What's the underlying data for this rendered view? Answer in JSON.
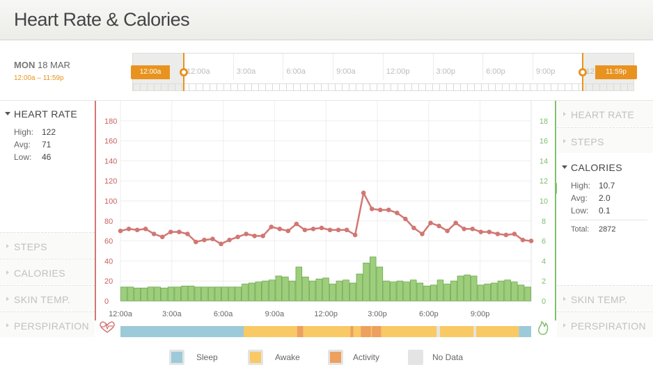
{
  "header": {
    "title": "Heart Rate & Calories"
  },
  "date": {
    "weekday": "MON",
    "day": "18 MAR",
    "range": "12:00a – 11:59p"
  },
  "timeline": {
    "labels": [
      "12:00a",
      "3:00a",
      "6:00a",
      "9:00a",
      "12:00p",
      "3:00p",
      "6:00p",
      "9:00p",
      "12"
    ],
    "start_tag": "12:00a",
    "end_tag": "11:59p",
    "accent": "#e8931f"
  },
  "left_panel": {
    "active": {
      "title": "HEART RATE",
      "stats": [
        {
          "key": "High:",
          "value": "122"
        },
        {
          "key": "Avg:",
          "value": "71"
        },
        {
          "key": "Low:",
          "value": "46"
        }
      ]
    },
    "collapsed": [
      "STEPS",
      "CALORIES",
      "SKIN TEMP.",
      "PERSPIRATION"
    ]
  },
  "right_panel": {
    "collapsed_top": [
      "HEART RATE",
      "STEPS"
    ],
    "active": {
      "title": "CALORIES",
      "stats": [
        {
          "key": "High:",
          "value": "10.7"
        },
        {
          "key": "Avg:",
          "value": "2.0"
        },
        {
          "key": "Low:",
          "value": "0.1"
        }
      ],
      "total_key": "Total:",
      "total_value": "2872"
    },
    "collapsed_bottom": [
      "SKIN TEMP.",
      "PERSPIRATION"
    ]
  },
  "chart_data": {
    "type": "bar+line",
    "x_tick_labels": [
      "12:00a",
      "3:00a",
      "6:00a",
      "9:00a",
      "12:00p",
      "3:00p",
      "6:00p",
      "9:00p"
    ],
    "left_axis": {
      "ticks": [
        "0",
        "20",
        "40",
        "60",
        "80",
        "100",
        "120",
        "140",
        "160",
        "180"
      ],
      "range": [
        0,
        200
      ],
      "color": "#c9605b"
    },
    "right_axis": {
      "ticks": [
        "0",
        "2",
        "4",
        "6",
        "8",
        "10",
        "12",
        "14",
        "16",
        "18"
      ],
      "range": [
        0,
        20
      ],
      "color": "#7fbf6b"
    },
    "heart_rate": [
      70,
      72,
      71,
      72,
      67,
      64,
      69,
      69,
      67,
      59,
      61,
      62,
      57,
      61,
      64,
      67,
      65,
      65,
      74,
      72,
      70,
      77,
      71,
      72,
      73,
      71,
      71,
      71,
      66,
      108,
      92,
      91,
      91,
      88,
      82,
      73,
      67,
      78,
      75,
      70,
      78,
      72,
      72,
      69,
      69,
      67,
      66,
      67,
      61,
      60
    ],
    "calories": [
      1.4,
      1.4,
      1.3,
      1.3,
      1.4,
      1.4,
      1.3,
      1.4,
      1.4,
      1.5,
      1.5,
      1.4,
      1.4,
      1.4,
      1.4,
      1.4,
      1.4,
      1.4,
      1.7,
      1.8,
      1.9,
      2.0,
      2.1,
      2.5,
      2.4,
      2.0,
      3.4,
      2.4,
      2.0,
      2.2,
      2.3,
      1.7,
      2.0,
      2.1,
      1.8,
      2.7,
      3.8,
      4.4,
      3.4,
      2.0,
      1.9,
      2.0,
      1.9,
      2.1,
      1.8,
      1.5,
      1.6,
      2.1,
      1.7,
      2.0,
      2.5,
      2.6,
      2.5,
      1.6,
      1.7,
      1.8,
      2.0,
      2.1,
      1.9,
      1.6,
      1.4
    ],
    "activity_bar": [
      {
        "state": "sleep",
        "start": 0.0,
        "end": 0.3
      },
      {
        "state": "awake",
        "start": 0.3,
        "end": 0.43
      },
      {
        "state": "activity",
        "start": 0.43,
        "end": 0.445
      },
      {
        "state": "awake",
        "start": 0.445,
        "end": 0.56
      },
      {
        "state": "activity",
        "start": 0.56,
        "end": 0.567
      },
      {
        "state": "awake",
        "start": 0.567,
        "end": 0.585
      },
      {
        "state": "activity",
        "start": 0.585,
        "end": 0.61
      },
      {
        "state": "awake",
        "start": 0.61,
        "end": 0.612
      },
      {
        "state": "activity",
        "start": 0.612,
        "end": 0.635
      },
      {
        "state": "awake",
        "start": 0.635,
        "end": 0.77
      },
      {
        "state": "nodata",
        "start": 0.77,
        "end": 0.778
      },
      {
        "state": "awake",
        "start": 0.778,
        "end": 0.86
      },
      {
        "state": "nodata",
        "start": 0.86,
        "end": 0.866
      },
      {
        "state": "awake",
        "start": 0.866,
        "end": 0.97
      },
      {
        "state": "sleep",
        "start": 0.97,
        "end": 1.0
      }
    ],
    "colors": {
      "sleep": "#9ccad8",
      "awake": "#f8c965",
      "activity": "#eda05f",
      "nodata": "#e4e4e4",
      "bar": "#9ece7b",
      "bar_stroke": "#6aa84f",
      "line": "#d17773"
    }
  },
  "legend": [
    {
      "label": "Sleep",
      "color": "#9ccad8"
    },
    {
      "label": "Awake",
      "color": "#f8c965"
    },
    {
      "label": "Activity",
      "color": "#eda05f"
    },
    {
      "label": "No Data",
      "color": "#e4e4e4"
    }
  ]
}
